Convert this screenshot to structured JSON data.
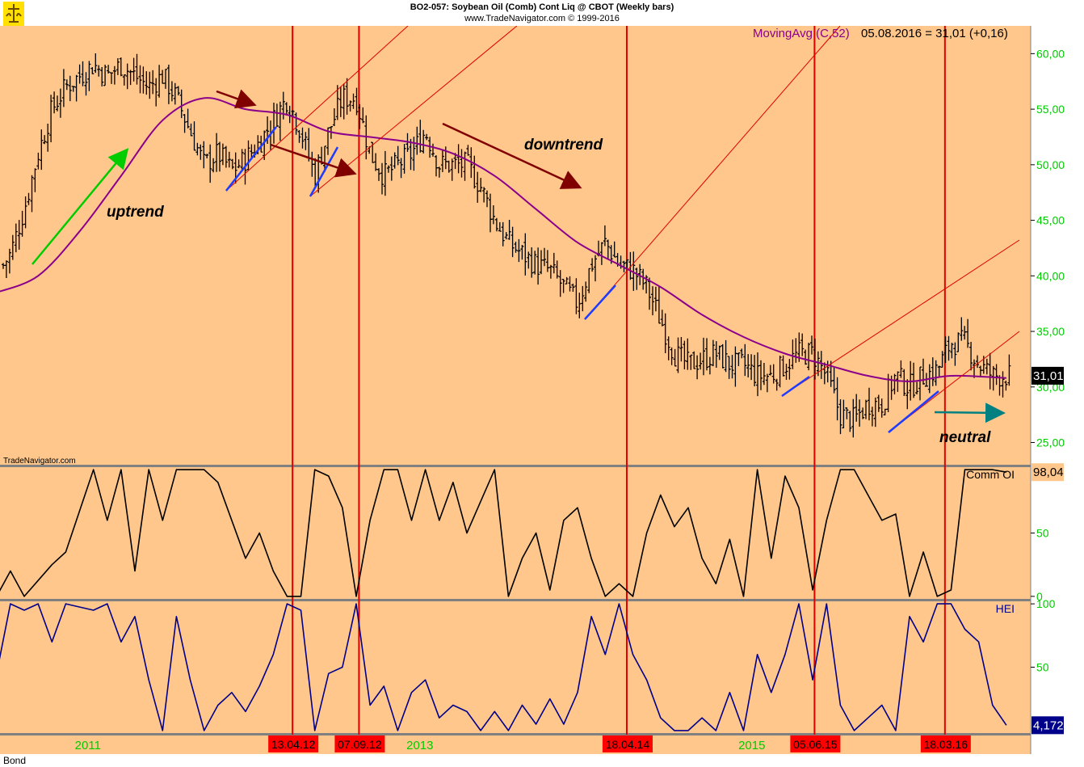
{
  "header": {
    "title": "BO2-057:  Soybean Oil (Comb) Cont Liq @ CBOT  (Weekly bars)",
    "subtitle": "www.TradeNavigator.com © 1999-2016"
  },
  "footer": {
    "symbol": "Bond",
    "watermark": "TradeNavigator.com"
  },
  "colors": {
    "background": "#FFC78C",
    "price_bars": "#000000",
    "moving_avg": "#8B008B",
    "event_lines": "#E00000",
    "trend_lines": "#E00000",
    "comm_oi": "#000000",
    "hei": "#00008B",
    "swing_lines": "#1E3CFF",
    "uptrend_arrow": "#00CC00",
    "downtrend_arrow": "#800000",
    "neutral_arrow": "#008080",
    "axis_ticks": "#00CC00"
  },
  "chart_data": [
    {
      "type": "bar",
      "panel": "price",
      "indicator_label": "MovingAvg (C,52)",
      "readout": "05.08.2016 = 31,01 (+0,16)",
      "last_value_label": "31,01",
      "y_ticks": [
        "60,00",
        "55,00",
        "50,00",
        "45,00",
        "40,00",
        "35,00",
        "30,00",
        "25,00"
      ],
      "ylim": [
        23.0,
        62.5
      ],
      "x_ticks": [
        "2011",
        "2013",
        "2015"
      ],
      "event_dates": [
        "13.04.12",
        "07.09.12",
        "18.04.14",
        "05.06.15",
        "18.03.16"
      ],
      "annotations": [
        "uptrend",
        "downtrend",
        "neutral"
      ],
      "series": [
        {
          "kind": "close_path",
          "points": [
            [
              "2010-07",
              40
            ],
            [
              "2010-08",
              42
            ],
            [
              "2010-09",
              46
            ],
            [
              "2010-10",
              51
            ],
            [
              "2010-11",
              55
            ],
            [
              "2010-12",
              57
            ],
            [
              "2011-01",
              58
            ],
            [
              "2011-02",
              59
            ],
            [
              "2011-03",
              58
            ],
            [
              "2011-04",
              59
            ],
            [
              "2011-05",
              58
            ],
            [
              "2011-06",
              57
            ],
            [
              "2011-07",
              58
            ],
            [
              "2011-08",
              56
            ],
            [
              "2011-09",
              53
            ],
            [
              "2011-10",
              50
            ],
            [
              "2011-11",
              51
            ],
            [
              "2011-12",
              49.5
            ],
            [
              "2012-01",
              50.5
            ],
            [
              "2012-02",
              52
            ],
            [
              "2012-03",
              54
            ],
            [
              "2012-04",
              56
            ],
            [
              "2012-05",
              53
            ],
            [
              "2012-06",
              49
            ],
            [
              "2012-07",
              53
            ],
            [
              "2012-08",
              56
            ],
            [
              "2012-09",
              56
            ],
            [
              "2012-10",
              51
            ],
            [
              "2012-11",
              49
            ],
            [
              "2012-12",
              50
            ],
            [
              "2013-01",
              51
            ],
            [
              "2013-02",
              53
            ],
            [
              "2013-03",
              50
            ],
            [
              "2013-04",
              50
            ],
            [
              "2013-05",
              50
            ],
            [
              "2013-06",
              48
            ],
            [
              "2013-07",
              45
            ],
            [
              "2013-08",
              43
            ],
            [
              "2013-09",
              42
            ],
            [
              "2013-10",
              41
            ],
            [
              "2013-11",
              40.5
            ],
            [
              "2013-12",
              39
            ],
            [
              "2014-01",
              37.5
            ],
            [
              "2014-02",
              41
            ],
            [
              "2014-03",
              43
            ],
            [
              "2014-04",
              41
            ],
            [
              "2014-05",
              40.5
            ],
            [
              "2014-06",
              39
            ],
            [
              "2014-07",
              36
            ],
            [
              "2014-08",
              33
            ],
            [
              "2014-09",
              32
            ],
            [
              "2014-10",
              32.5
            ],
            [
              "2014-11",
              33
            ],
            [
              "2014-12",
              32
            ],
            [
              "2015-01",
              32
            ],
            [
              "2015-02",
              31
            ],
            [
              "2015-03",
              31
            ],
            [
              "2015-04",
              32
            ],
            [
              "2015-05",
              33
            ],
            [
              "2015-06",
              33
            ],
            [
              "2015-07",
              31
            ],
            [
              "2015-08",
              27.5
            ],
            [
              "2015-09",
              27
            ],
            [
              "2015-10",
              28.5
            ],
            [
              "2015-11",
              28.5
            ],
            [
              "2015-12",
              31
            ],
            [
              "2016-01",
              30
            ],
            [
              "2016-02",
              31
            ],
            [
              "2016-03",
              31.5
            ],
            [
              "2016-04",
              34
            ],
            [
              "2016-05",
              34
            ],
            [
              "2016-06",
              32
            ],
            [
              "2016-07",
              31
            ],
            [
              "2016-08",
              31.01
            ]
          ]
        },
        {
          "name": "MovingAvg (C,52)",
          "kind": "line",
          "points": [
            [
              "2010-07",
              38.5
            ],
            [
              "2010-10",
              40
            ],
            [
              "2011-01",
              44
            ],
            [
              "2011-04",
              49
            ],
            [
              "2011-07",
              54
            ],
            [
              "2011-10",
              56
            ],
            [
              "2012-01",
              55
            ],
            [
              "2012-04",
              54.5
            ],
            [
              "2012-07",
              53
            ],
            [
              "2012-10",
              52.5
            ],
            [
              "2013-01",
              52
            ],
            [
              "2013-04",
              51
            ],
            [
              "2013-07",
              49
            ],
            [
              "2013-10",
              46
            ],
            [
              "2014-01",
              43
            ],
            [
              "2014-04",
              41
            ],
            [
              "2014-07",
              39
            ],
            [
              "2014-10",
              36.5
            ],
            [
              "2015-01",
              34.5
            ],
            [
              "2015-04",
              33
            ],
            [
              "2015-07",
              32
            ],
            [
              "2015-10",
              31
            ],
            [
              "2016-01",
              30.5
            ],
            [
              "2016-04",
              31
            ],
            [
              "2016-08",
              30.8
            ]
          ]
        }
      ]
    },
    {
      "type": "line",
      "panel": "commercials",
      "series": [
        {
          "name": "Comm OI"
        }
      ],
      "last_value_label": "98,04",
      "y_ticks": [
        "50",
        "0"
      ],
      "ylim": [
        -2,
        102
      ],
      "points": [
        [
          "2010-07",
          0
        ],
        [
          "2010-08",
          20
        ],
        [
          "2010-09",
          0
        ],
        [
          "2010-11",
          25
        ],
        [
          "2010-12",
          35
        ],
        [
          "2011-02",
          100
        ],
        [
          "2011-03",
          60
        ],
        [
          "2011-04",
          100
        ],
        [
          "2011-05",
          20
        ],
        [
          "2011-06",
          100
        ],
        [
          "2011-07",
          60
        ],
        [
          "2011-08",
          100
        ],
        [
          "2011-10",
          100
        ],
        [
          "2011-11",
          90
        ],
        [
          "2011-12",
          60
        ],
        [
          "2012-01",
          30
        ],
        [
          "2012-02",
          50
        ],
        [
          "2012-03",
          20
        ],
        [
          "2012-04",
          0
        ],
        [
          "2012-05",
          0
        ],
        [
          "2012-06",
          100
        ],
        [
          "2012-07",
          95
        ],
        [
          "2012-08",
          70
        ],
        [
          "2012-09",
          0
        ],
        [
          "2012-10",
          60
        ],
        [
          "2012-11",
          100
        ],
        [
          "2012-12",
          100
        ],
        [
          "2013-01",
          60
        ],
        [
          "2013-02",
          100
        ],
        [
          "2013-03",
          60
        ],
        [
          "2013-04",
          90
        ],
        [
          "2013-05",
          50
        ],
        [
          "2013-06",
          75
        ],
        [
          "2013-07",
          100
        ],
        [
          "2013-08",
          0
        ],
        [
          "2013-09",
          30
        ],
        [
          "2013-10",
          50
        ],
        [
          "2013-11",
          5
        ],
        [
          "2013-12",
          60
        ],
        [
          "2014-01",
          70
        ],
        [
          "2014-02",
          30
        ],
        [
          "2014-03",
          0
        ],
        [
          "2014-04",
          10
        ],
        [
          "2014-05",
          0
        ],
        [
          "2014-06",
          50
        ],
        [
          "2014-07",
          80
        ],
        [
          "2014-08",
          55
        ],
        [
          "2014-09",
          70
        ],
        [
          "2014-10",
          30
        ],
        [
          "2014-11",
          10
        ],
        [
          "2014-12",
          45
        ],
        [
          "2015-01",
          0
        ],
        [
          "2015-02",
          100
        ],
        [
          "2015-03",
          30
        ],
        [
          "2015-04",
          95
        ],
        [
          "2015-05",
          70
        ],
        [
          "2015-06",
          5
        ],
        [
          "2015-07",
          60
        ],
        [
          "2015-08",
          100
        ],
        [
          "2015-09",
          100
        ],
        [
          "2015-10",
          80
        ],
        [
          "2015-11",
          60
        ],
        [
          "2015-12",
          65
        ],
        [
          "2016-01",
          0
        ],
        [
          "2016-02",
          35
        ],
        [
          "2016-03",
          0
        ],
        [
          "2016-04",
          5
        ],
        [
          "2016-05",
          100
        ],
        [
          "2016-06",
          100
        ],
        [
          "2016-07",
          100
        ],
        [
          "2016-08",
          98.04
        ]
      ]
    },
    {
      "type": "line",
      "panel": "hei",
      "series": [
        {
          "name": "HEI"
        }
      ],
      "last_value_label": "4,1724",
      "y_ticks": [
        "100",
        "50"
      ],
      "ylim": [
        -2,
        102
      ],
      "points": [
        [
          "2010-07",
          45
        ],
        [
          "2010-08",
          100
        ],
        [
          "2010-09",
          95
        ],
        [
          "2010-10",
          100
        ],
        [
          "2010-11",
          70
        ],
        [
          "2010-12",
          100
        ],
        [
          "2011-02",
          95
        ],
        [
          "2011-03",
          100
        ],
        [
          "2011-04",
          70
        ],
        [
          "2011-05",
          90
        ],
        [
          "2011-06",
          40
        ],
        [
          "2011-07",
          0
        ],
        [
          "2011-08",
          90
        ],
        [
          "2011-09",
          40
        ],
        [
          "2011-10",
          0
        ],
        [
          "2011-11",
          20
        ],
        [
          "2011-12",
          30
        ],
        [
          "2012-01",
          15
        ],
        [
          "2012-02",
          35
        ],
        [
          "2012-03",
          60
        ],
        [
          "2012-04",
          100
        ],
        [
          "2012-05",
          95
        ],
        [
          "2012-06",
          0
        ],
        [
          "2012-07",
          45
        ],
        [
          "2012-08",
          50
        ],
        [
          "2012-09",
          100
        ],
        [
          "2012-10",
          20
        ],
        [
          "2012-11",
          35
        ],
        [
          "2012-12",
          0
        ],
        [
          "2013-01",
          30
        ],
        [
          "2013-02",
          40
        ],
        [
          "2013-03",
          10
        ],
        [
          "2013-04",
          20
        ],
        [
          "2013-05",
          15
        ],
        [
          "2013-06",
          0
        ],
        [
          "2013-07",
          15
        ],
        [
          "2013-08",
          0
        ],
        [
          "2013-09",
          20
        ],
        [
          "2013-10",
          5
        ],
        [
          "2013-11",
          25
        ],
        [
          "2013-12",
          5
        ],
        [
          "2014-01",
          30
        ],
        [
          "2014-02",
          90
        ],
        [
          "2014-03",
          60
        ],
        [
          "2014-04",
          100
        ],
        [
          "2014-05",
          60
        ],
        [
          "2014-06",
          40
        ],
        [
          "2014-07",
          10
        ],
        [
          "2014-08",
          0
        ],
        [
          "2014-09",
          0
        ],
        [
          "2014-10",
          10
        ],
        [
          "2014-11",
          0
        ],
        [
          "2014-12",
          30
        ],
        [
          "2015-01",
          0
        ],
        [
          "2015-02",
          60
        ],
        [
          "2015-03",
          30
        ],
        [
          "2015-04",
          60
        ],
        [
          "2015-05",
          100
        ],
        [
          "2015-06",
          40
        ],
        [
          "2015-07",
          100
        ],
        [
          "2015-08",
          20
        ],
        [
          "2015-09",
          0
        ],
        [
          "2015-10",
          10
        ],
        [
          "2015-11",
          20
        ],
        [
          "2015-12",
          0
        ],
        [
          "2016-01",
          90
        ],
        [
          "2016-02",
          70
        ],
        [
          "2016-03",
          100
        ],
        [
          "2016-04",
          100
        ],
        [
          "2016-05",
          80
        ],
        [
          "2016-06",
          70
        ],
        [
          "2016-07",
          20
        ],
        [
          "2016-08",
          4.17
        ]
      ]
    }
  ]
}
